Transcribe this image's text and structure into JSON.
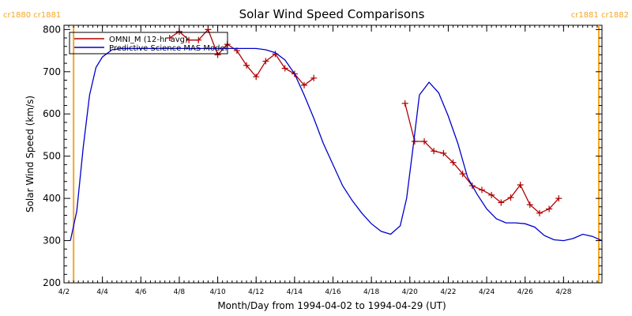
{
  "chart_data": {
    "type": "line",
    "title": "Solar Wind Speed Comparisons",
    "xlabel": "Month/Day from 1994-04-02 to 1994-04-29 (UT)",
    "ylabel": "Solar Wind Speed (km/s)",
    "xlim": [
      "1994-04-02",
      "1994-04-30"
    ],
    "ylim": [
      200,
      810
    ],
    "y_ticks": [
      200,
      300,
      400,
      500,
      600,
      700,
      800
    ],
    "x_ticks": [
      {
        "date": "1994-04-02",
        "label": "4/2"
      },
      {
        "date": "1994-04-04",
        "label": "4/4"
      },
      {
        "date": "1994-04-06",
        "label": "4/6"
      },
      {
        "date": "1994-04-08",
        "label": "4/8"
      },
      {
        "date": "1994-04-10",
        "label": "4/10"
      },
      {
        "date": "1994-04-12",
        "label": "4/12"
      },
      {
        "date": "1994-04-14",
        "label": "4/14"
      },
      {
        "date": "1994-04-16",
        "label": "4/16"
      },
      {
        "date": "1994-04-18",
        "label": "4/18"
      },
      {
        "date": "1994-04-20",
        "label": "4/20"
      },
      {
        "date": "1994-04-22",
        "label": "4/22"
      },
      {
        "date": "1994-04-24",
        "label": "4/24"
      },
      {
        "date": "1994-04-26",
        "label": "4/26"
      },
      {
        "date": "1994-04-28",
        "label": "4/28"
      }
    ],
    "carrington_markers": [
      {
        "date": "1994-04-02T12:00",
        "label": "cr1880 cr1881",
        "color": "#f5a623"
      },
      {
        "date": "1994-04-29T20:00",
        "label": "cr1881 cr1882",
        "color": "#f5a623"
      }
    ],
    "legend_placement": "top-left",
    "grid": false,
    "series": [
      {
        "name": "OMNI_M (12-hr avg)",
        "color": "#b00000",
        "marker": "plus",
        "x": [
          "1994-04-07T12:00",
          "1994-04-08T00:00",
          "1994-04-08T12:00",
          "1994-04-09T00:00",
          "1994-04-09T12:00",
          "1994-04-10T00:00",
          "1994-04-10T12:00",
          "1994-04-11T00:00",
          "1994-04-11T12:00",
          "1994-04-12T00:00",
          "1994-04-12T12:00",
          "1994-04-13T00:00",
          "1994-04-13T12:00",
          "1994-04-14T00:00",
          "1994-04-14T12:00",
          "1994-04-15T00:00",
          null,
          "1994-04-19T18:00",
          "1994-04-20T06:00",
          "1994-04-20T18:00",
          "1994-04-21T06:00",
          "1994-04-21T18:00",
          "1994-04-22T06:00",
          "1994-04-22T18:00",
          "1994-04-23T06:00",
          "1994-04-23T18:00",
          "1994-04-24T06:00",
          "1994-04-24T18:00",
          "1994-04-25T06:00",
          "1994-04-25T18:00",
          "1994-04-26T06:00",
          "1994-04-26T18:00",
          "1994-04-27T06:00",
          "1994-04-27T18:00"
        ],
        "y": [
          780,
          795,
          775,
          775,
          800,
          740,
          765,
          750,
          715,
          688,
          725,
          742,
          708,
          695,
          668,
          685,
          null,
          625,
          535,
          535,
          512,
          507,
          485,
          458,
          430,
          420,
          408,
          390,
          402,
          432,
          385,
          365,
          375,
          400
        ]
      },
      {
        "name": "Predictive Science MAS Model",
        "color": "#0000cc",
        "marker": "none",
        "x": [
          "1994-04-02T08:00",
          "1994-04-02T16:00",
          "1994-04-03T00:00",
          "1994-04-03T08:00",
          "1994-04-03T16:00",
          "1994-04-04T00:00",
          "1994-04-04T12:00",
          "1994-04-05T00:00",
          "1994-04-06T00:00",
          "1994-04-08T00:00",
          "1994-04-10T00:00",
          "1994-04-12T00:00",
          "1994-04-12T12:00",
          "1994-04-13T00:00",
          "1994-04-13T12:00",
          "1994-04-14T00:00",
          "1994-04-14T12:00",
          "1994-04-15T00:00",
          "1994-04-15T12:00",
          "1994-04-16T00:00",
          "1994-04-16T12:00",
          "1994-04-17T00:00",
          "1994-04-17T12:00",
          "1994-04-18T00:00",
          "1994-04-18T12:00",
          "1994-04-19T00:00",
          "1994-04-19T12:00",
          "1994-04-19T20:00",
          "1994-04-20T04:00",
          "1994-04-20T12:00",
          "1994-04-21T00:00",
          "1994-04-21T12:00",
          "1994-04-22T00:00",
          "1994-04-22T12:00",
          "1994-04-23T00:00",
          "1994-04-23T12:00",
          "1994-04-24T00:00",
          "1994-04-24T12:00",
          "1994-04-25T00:00",
          "1994-04-25T12:00",
          "1994-04-26T00:00",
          "1994-04-26T12:00",
          "1994-04-27T00:00",
          "1994-04-27T12:00",
          "1994-04-28T00:00",
          "1994-04-28T12:00",
          "1994-04-29T00:00",
          "1994-04-29T12:00",
          "1994-04-30T00:00"
        ],
        "y": [
          300,
          370,
          520,
          645,
          710,
          735,
          752,
          755,
          755,
          755,
          755,
          755,
          752,
          745,
          728,
          695,
          645,
          590,
          530,
          480,
          430,
          395,
          365,
          340,
          322,
          315,
          335,
          400,
          520,
          645,
          675,
          650,
          595,
          530,
          450,
          410,
          375,
          352,
          342,
          342,
          340,
          332,
          312,
          302,
          300,
          305,
          315,
          310,
          300
        ]
      }
    ]
  }
}
